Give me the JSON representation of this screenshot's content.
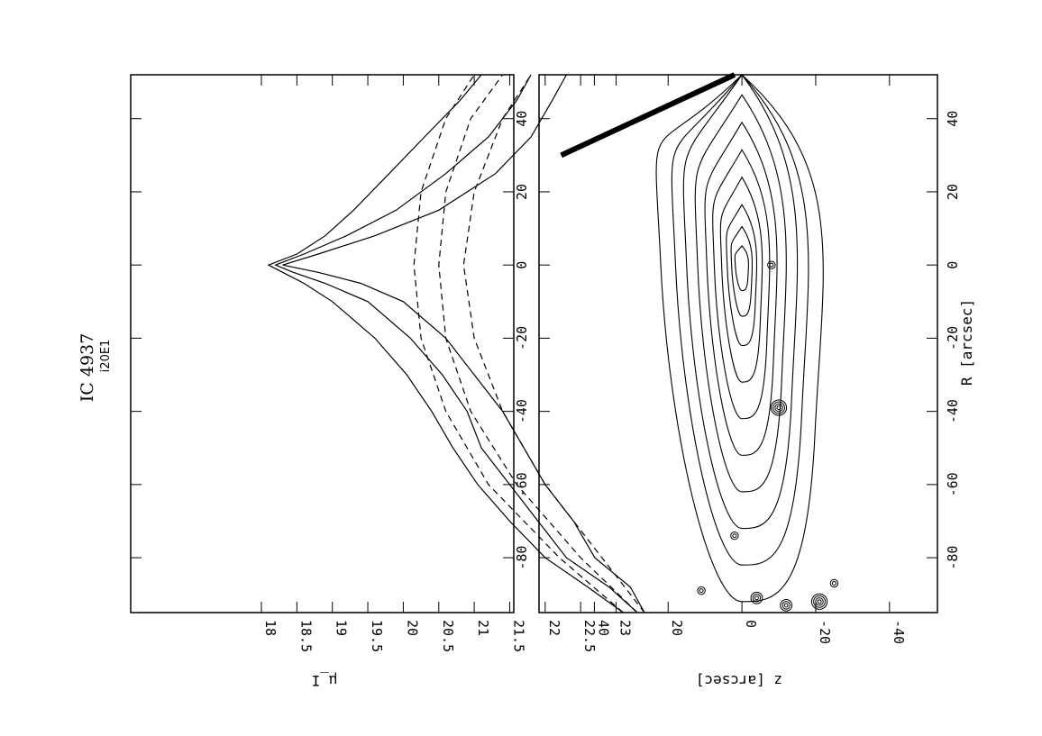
{
  "chart_data": [
    {
      "type": "line",
      "title": "IC 4937",
      "subtitle": "i20E1",
      "xlabel": "",
      "ylabel": "μ_I",
      "xlim": [
        -95,
        52
      ],
      "ylim": [
        18,
        23.4
      ],
      "y_reversed": true,
      "x_tick_values": [
        -80,
        -60,
        -40,
        -20,
        0,
        20,
        40
      ],
      "x_tick_labels": [
        "",
        "",
        "",
        "",
        "",
        "",
        ""
      ],
      "y_tick_values": [
        18,
        18.5,
        19,
        19.5,
        20,
        20.5,
        21,
        21.5,
        22,
        22.5,
        23
      ],
      "y_tick_labels": [
        "18",
        "18.5",
        "19",
        "19.5",
        "20",
        "20.5",
        "21",
        "21.5",
        "22",
        "22.5",
        "23"
      ],
      "series": [
        {
          "style": "solid",
          "x": [
            -95,
            -88,
            -80,
            -70,
            -60,
            -50,
            -40,
            -30,
            -20,
            -10,
            -5,
            -2,
            0,
            3,
            8,
            15,
            25,
            35,
            45,
            52
          ],
          "y": [
            23.1,
            22.6,
            22.0,
            21.5,
            21.05,
            20.7,
            20.4,
            20.05,
            19.6,
            19.0,
            18.6,
            18.3,
            18.1,
            18.5,
            18.9,
            19.3,
            19.8,
            20.3,
            20.8,
            21.1
          ]
        },
        {
          "style": "solid",
          "x": [
            -95,
            -88,
            -80,
            -70,
            -60,
            -50,
            -40,
            -30,
            -20,
            -10,
            -5,
            -2,
            0,
            3,
            8,
            15,
            25,
            35,
            45,
            52
          ],
          "y": [
            23.3,
            22.9,
            22.3,
            21.9,
            21.5,
            21.1,
            20.9,
            20.55,
            20.1,
            19.5,
            18.9,
            18.45,
            18.2,
            18.6,
            19.2,
            19.9,
            20.6,
            21.2,
            21.6,
            21.8
          ]
        },
        {
          "style": "solid",
          "x": [
            -95,
            -88,
            -80,
            -70,
            -60,
            -50,
            -40,
            -30,
            -20,
            -10,
            -5,
            -2,
            0,
            3,
            8,
            15,
            25,
            35,
            45,
            52
          ],
          "y": [
            23.4,
            23.2,
            22.7,
            22.4,
            22.0,
            21.7,
            21.4,
            21.0,
            20.6,
            20.0,
            19.4,
            18.8,
            18.3,
            18.8,
            19.6,
            20.5,
            21.3,
            21.8,
            22.1,
            22.3
          ]
        },
        {
          "style": "dashed",
          "x": [
            -95,
            -80,
            -60,
            -40,
            -20,
            0,
            20,
            40,
            52
          ],
          "y": [
            23.1,
            22.2,
            21.2,
            20.6,
            20.25,
            20.15,
            20.25,
            20.6,
            21.0
          ]
        },
        {
          "style": "dashed",
          "x": [
            -95,
            -80,
            -60,
            -40,
            -20,
            0,
            20,
            40,
            52
          ],
          "y": [
            23.3,
            22.5,
            21.6,
            20.95,
            20.6,
            20.5,
            20.6,
            20.95,
            21.4
          ]
        },
        {
          "style": "dashed",
          "x": [
            -95,
            -80,
            -60,
            -40,
            -20,
            0,
            20,
            40,
            52
          ],
          "y": [
            23.4,
            22.8,
            22.0,
            21.4,
            21.0,
            20.85,
            21.0,
            21.4,
            21.8
          ]
        }
      ]
    },
    {
      "type": "contour",
      "title": "",
      "xlabel": "R [arcsec]",
      "ylabel": "z [arcsec]",
      "xlim": [
        -95,
        52
      ],
      "ylim": [
        -53,
        55
      ],
      "y_reversed": true,
      "x_tick_values": [
        -80,
        -60,
        -40,
        -20,
        0,
        20,
        40
      ],
      "x_tick_labels": [
        "-80",
        "-60",
        "-40",
        "-20",
        "0",
        "20",
        "40"
      ],
      "y_tick_values": [
        40,
        20,
        0,
        -20,
        -40
      ],
      "y_tick_labels": [
        "40",
        "20",
        "0",
        "-20",
        "-40"
      ],
      "galaxy_center": [
        0,
        0
      ],
      "isophote_half_lengths": [
        92,
        82,
        72,
        62,
        52,
        42,
        32,
        22,
        14,
        7
      ],
      "isophote_half_widths": [
        22,
        18,
        15,
        12,
        9.5,
        7.5,
        5.5,
        4,
        2.8,
        1.8
      ],
      "point_sources": [
        {
          "x": -39,
          "z": -10,
          "rings": 4
        },
        {
          "x": -74,
          "z": 2,
          "rings": 2
        },
        {
          "x": -89,
          "z": 11,
          "rings": 2
        },
        {
          "x": -91,
          "z": -4,
          "rings": 3
        },
        {
          "x": -93,
          "z": -12,
          "rings": 3
        },
        {
          "x": -92,
          "z": -21,
          "rings": 4
        },
        {
          "x": -87,
          "z": -25,
          "rings": 2
        },
        {
          "x": 0,
          "z": -8,
          "rings": 2
        }
      ],
      "diffraction_spike": {
        "x": [
          30,
          52
        ],
        "z": [
          49,
          2
        ]
      }
    }
  ]
}
